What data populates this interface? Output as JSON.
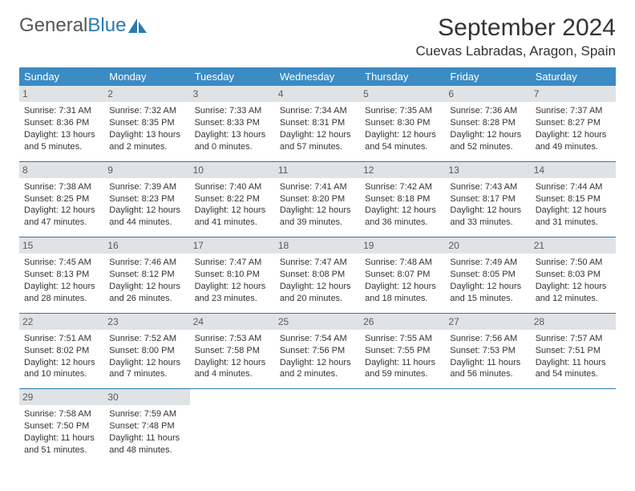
{
  "brand": {
    "part1": "General",
    "part2": "Blue"
  },
  "title": "September 2024",
  "location": "Cuevas Labradas, Aragon, Spain",
  "colors": {
    "header_bg": "#3b8bc4",
    "header_text": "#ffffff",
    "daynum_bg": "#dfe3e6",
    "border": "#2a7ab0",
    "brand_blue": "#2a7ab0"
  },
  "weekdays": [
    "Sunday",
    "Monday",
    "Tuesday",
    "Wednesday",
    "Thursday",
    "Friday",
    "Saturday"
  ],
  "days": [
    {
      "n": "1",
      "sr": "7:31 AM",
      "ss": "8:36 PM",
      "dl": "13 hours and 5 minutes."
    },
    {
      "n": "2",
      "sr": "7:32 AM",
      "ss": "8:35 PM",
      "dl": "13 hours and 2 minutes."
    },
    {
      "n": "3",
      "sr": "7:33 AM",
      "ss": "8:33 PM",
      "dl": "13 hours and 0 minutes."
    },
    {
      "n": "4",
      "sr": "7:34 AM",
      "ss": "8:31 PM",
      "dl": "12 hours and 57 minutes."
    },
    {
      "n": "5",
      "sr": "7:35 AM",
      "ss": "8:30 PM",
      "dl": "12 hours and 54 minutes."
    },
    {
      "n": "6",
      "sr": "7:36 AM",
      "ss": "8:28 PM",
      "dl": "12 hours and 52 minutes."
    },
    {
      "n": "7",
      "sr": "7:37 AM",
      "ss": "8:27 PM",
      "dl": "12 hours and 49 minutes."
    },
    {
      "n": "8",
      "sr": "7:38 AM",
      "ss": "8:25 PM",
      "dl": "12 hours and 47 minutes."
    },
    {
      "n": "9",
      "sr": "7:39 AM",
      "ss": "8:23 PM",
      "dl": "12 hours and 44 minutes."
    },
    {
      "n": "10",
      "sr": "7:40 AM",
      "ss": "8:22 PM",
      "dl": "12 hours and 41 minutes."
    },
    {
      "n": "11",
      "sr": "7:41 AM",
      "ss": "8:20 PM",
      "dl": "12 hours and 39 minutes."
    },
    {
      "n": "12",
      "sr": "7:42 AM",
      "ss": "8:18 PM",
      "dl": "12 hours and 36 minutes."
    },
    {
      "n": "13",
      "sr": "7:43 AM",
      "ss": "8:17 PM",
      "dl": "12 hours and 33 minutes."
    },
    {
      "n": "14",
      "sr": "7:44 AM",
      "ss": "8:15 PM",
      "dl": "12 hours and 31 minutes."
    },
    {
      "n": "15",
      "sr": "7:45 AM",
      "ss": "8:13 PM",
      "dl": "12 hours and 28 minutes."
    },
    {
      "n": "16",
      "sr": "7:46 AM",
      "ss": "8:12 PM",
      "dl": "12 hours and 26 minutes."
    },
    {
      "n": "17",
      "sr": "7:47 AM",
      "ss": "8:10 PM",
      "dl": "12 hours and 23 minutes."
    },
    {
      "n": "18",
      "sr": "7:47 AM",
      "ss": "8:08 PM",
      "dl": "12 hours and 20 minutes."
    },
    {
      "n": "19",
      "sr": "7:48 AM",
      "ss": "8:07 PM",
      "dl": "12 hours and 18 minutes."
    },
    {
      "n": "20",
      "sr": "7:49 AM",
      "ss": "8:05 PM",
      "dl": "12 hours and 15 minutes."
    },
    {
      "n": "21",
      "sr": "7:50 AM",
      "ss": "8:03 PM",
      "dl": "12 hours and 12 minutes."
    },
    {
      "n": "22",
      "sr": "7:51 AM",
      "ss": "8:02 PM",
      "dl": "12 hours and 10 minutes."
    },
    {
      "n": "23",
      "sr": "7:52 AM",
      "ss": "8:00 PM",
      "dl": "12 hours and 7 minutes."
    },
    {
      "n": "24",
      "sr": "7:53 AM",
      "ss": "7:58 PM",
      "dl": "12 hours and 4 minutes."
    },
    {
      "n": "25",
      "sr": "7:54 AM",
      "ss": "7:56 PM",
      "dl": "12 hours and 2 minutes."
    },
    {
      "n": "26",
      "sr": "7:55 AM",
      "ss": "7:55 PM",
      "dl": "11 hours and 59 minutes."
    },
    {
      "n": "27",
      "sr": "7:56 AM",
      "ss": "7:53 PM",
      "dl": "11 hours and 56 minutes."
    },
    {
      "n": "28",
      "sr": "7:57 AM",
      "ss": "7:51 PM",
      "dl": "11 hours and 54 minutes."
    },
    {
      "n": "29",
      "sr": "7:58 AM",
      "ss": "7:50 PM",
      "dl": "11 hours and 51 minutes."
    },
    {
      "n": "30",
      "sr": "7:59 AM",
      "ss": "7:48 PM",
      "dl": "11 hours and 48 minutes."
    }
  ],
  "labels": {
    "sunrise": "Sunrise: ",
    "sunset": "Sunset: ",
    "daylight": "Daylight: "
  }
}
